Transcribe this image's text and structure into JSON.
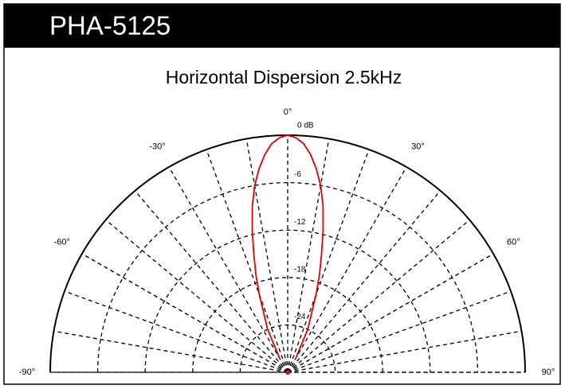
{
  "header": {
    "title": "PHA-5125"
  },
  "chart_data": {
    "type": "polar",
    "title": "Horizontal Dispersion 2.5kHz",
    "rlim": [
      -30,
      0
    ],
    "rticks": [
      {
        "value": 0,
        "label": "0 dB"
      },
      -6,
      -12,
      -18,
      -24
    ],
    "thetalim": [
      -90,
      90
    ],
    "thetaticks": [
      {
        "value": -90,
        "label": "-90°"
      },
      {
        "value": -60,
        "label": "-60°"
      },
      {
        "value": -30,
        "label": "-30°"
      },
      {
        "value": 0,
        "label": "0°"
      },
      {
        "value": 30,
        "label": "30°"
      },
      {
        "value": 60,
        "label": "60°"
      },
      {
        "value": 90,
        "label": "90°"
      }
    ],
    "theta_grid": [
      -80,
      -70,
      -50,
      -40,
      -20,
      -10,
      10,
      20,
      40,
      50,
      70,
      80
    ],
    "series": [
      {
        "color": "#e00000",
        "theta": [
          -30,
          -25,
          -20,
          -18,
          -16,
          -14,
          -12,
          -10,
          -8,
          -6,
          -4,
          -2,
          0,
          2,
          4,
          6,
          8,
          10,
          12,
          14,
          16,
          18,
          20,
          25,
          30
        ],
        "values": [
          -28,
          -24,
          -19.5,
          -17,
          -14.5,
          -11.5,
          -8.5,
          -6,
          -4,
          -2.3,
          -1,
          -0.3,
          0,
          -0.3,
          -1,
          -2.3,
          -4,
          -6,
          -8.5,
          -11.5,
          -14.5,
          -17,
          -19.5,
          -24,
          -28
        ]
      }
    ]
  }
}
